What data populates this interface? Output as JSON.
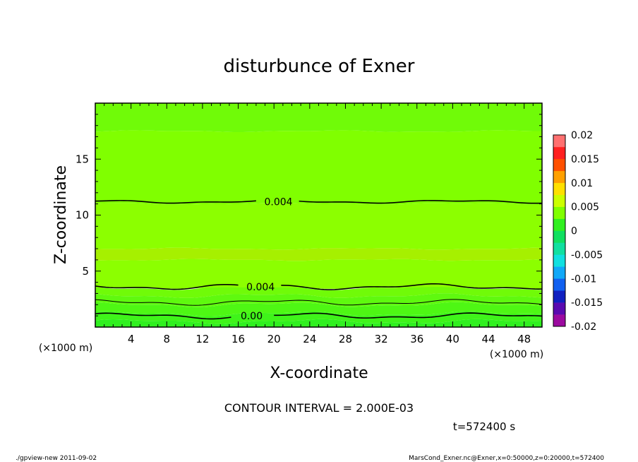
{
  "chart_data": {
    "type": "heatmap",
    "title": "disturbunce of Exner",
    "xlabel": "X-coordinate",
    "ylabel": "Z-coordinate",
    "x_unit": "(×1000 m)",
    "z_unit": "(×1000 m)",
    "xlim": [
      0,
      50
    ],
    "ylim": [
      0,
      20
    ],
    "x_ticks": [
      4,
      8,
      12,
      16,
      20,
      24,
      28,
      32,
      36,
      40,
      44,
      48
    ],
    "y_ticks": [
      5,
      10,
      15
    ],
    "colorbar": {
      "min": -0.02,
      "max": 0.02,
      "step": 0.0025,
      "labels": [
        "0.02",
        "0.015",
        "0.01",
        "0.005",
        "0",
        "-0.005",
        "-0.01",
        "-0.015",
        "-0.02"
      ],
      "colors": [
        "#9c0aa0",
        "#5a0ab0",
        "#1020c0",
        "#1060f0",
        "#10a8f8",
        "#10e0e0",
        "#10e0a0",
        "#10e060",
        "#30f020",
        "#80ff00",
        "#ccff00",
        "#ffe000",
        "#ffa000",
        "#ff5000",
        "#ff2020",
        "#ff7070"
      ]
    },
    "bands": [
      {
        "from": 0.0,
        "to": 0.5,
        "value": 0.0,
        "color": "#30f020"
      },
      {
        "from": 0.5,
        "to": 1.2,
        "value": 0.001,
        "color": "#3ff41a"
      },
      {
        "from": 1.2,
        "to": 2.0,
        "value": 0.002,
        "color": "#4ef714"
      },
      {
        "from": 2.0,
        "to": 2.8,
        "value": 0.0025,
        "color": "#5ff90f"
      },
      {
        "from": 2.8,
        "to": 3.5,
        "value": 0.003,
        "color": "#70fb08"
      },
      {
        "from": 3.5,
        "to": 6.0,
        "value": 0.0045,
        "color": "#8cff00"
      },
      {
        "from": 6.0,
        "to": 7.0,
        "value": 0.0055,
        "color": "#a6f000"
      },
      {
        "from": 7.0,
        "to": 11.0,
        "value": 0.0045,
        "color": "#8cff00"
      },
      {
        "from": 11.0,
        "to": 17.5,
        "value": 0.0035,
        "color": "#80ff00"
      },
      {
        "from": 17.5,
        "to": 20.0,
        "value": 0.003,
        "color": "#70fb08"
      }
    ],
    "contours": [
      {
        "level": 0.0,
        "label": "0.00",
        "z": 1.0,
        "label_x": 17.5
      },
      {
        "level": 0.002,
        "label": "",
        "z": 2.2,
        "label_x": null
      },
      {
        "level": 0.004,
        "label": "0.004",
        "z": 3.6,
        "label_x": 18.5
      },
      {
        "level": 0.004,
        "label": "0.004",
        "z": 11.2,
        "label_x": 20.5
      }
    ],
    "contour_interval_text": "CONTOUR INTERVAL = 2.000E-03",
    "time_text": "t=572400 s"
  },
  "footer": {
    "left": "./gpview-new  2011-09-02",
    "right": "MarsCond_Exner.nc@Exner,x=0:50000,z=0:20000,t=572400"
  }
}
